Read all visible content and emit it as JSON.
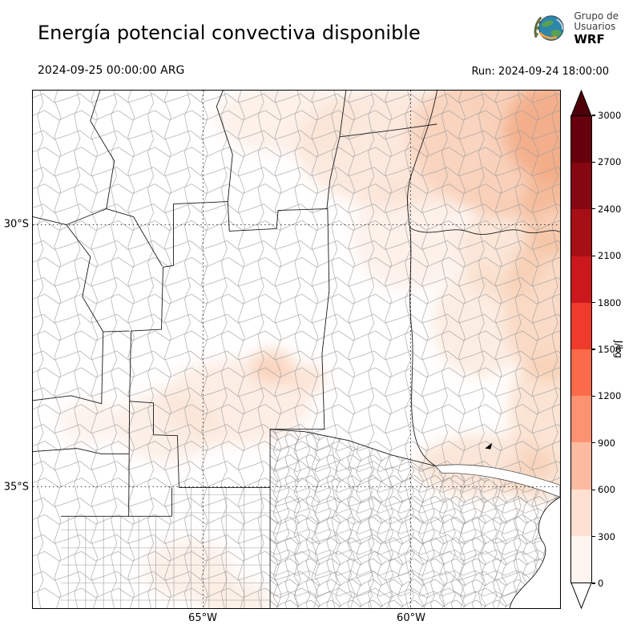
{
  "header": {
    "title": "Energía potencial convectiva disponible",
    "logo": {
      "line1": "Grupo de",
      "line2": "Usuarios",
      "line3": "WRF"
    }
  },
  "times": {
    "valid": "2024-09-25 00:00:00 ARG",
    "run": "Run: 2024-09-24 18:00:00"
  },
  "map": {
    "lat_ticks": [
      "30°S",
      "35°S"
    ],
    "lon_ticks": [
      "65°W",
      "60°W"
    ]
  },
  "colorbar": {
    "unit": "J/kg",
    "ticks": [
      "3000",
      "2700",
      "2400",
      "2100",
      "1800",
      "1500",
      "1200",
      "900",
      "600",
      "300",
      "0"
    ],
    "segment_colors_top_to_bottom": [
      "#67000d",
      "#840711",
      "#a50f15",
      "#cb181d",
      "#ef3b2c",
      "#fb6a4a",
      "#fc9272",
      "#fcbba1",
      "#fee0d2",
      "#fff5f0"
    ],
    "over_color": "#4c0008",
    "under_color": "#ffffff",
    "value_min": 0,
    "value_max": 3000,
    "step": 300
  }
}
